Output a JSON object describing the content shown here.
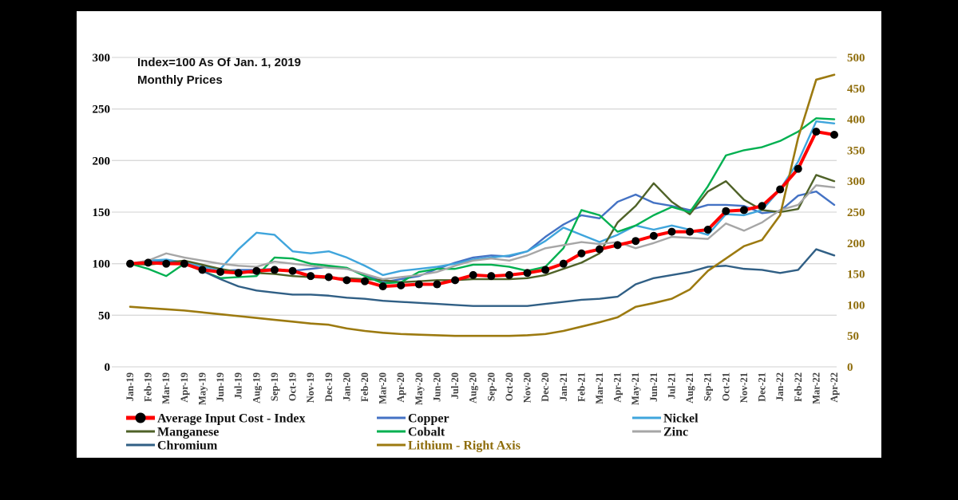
{
  "chart_data": {
    "type": "line",
    "title": "Index=100 As Of Jan. 1, 2019",
    "subtitle": "Monthly Prices",
    "x_categories": [
      "Jan-19",
      "Feb-19",
      "Mar-19",
      "Apr-19",
      "May-19",
      "Jun-19",
      "Jul-19",
      "Aug-19",
      "Sep-19",
      "Oct-19",
      "Nov-19",
      "Dec-19",
      "Jan-20",
      "Feb-20",
      "Mar-20",
      "Apr-20",
      "May-20",
      "Jun-20",
      "Jul-20",
      "Aug-20",
      "Sep-20",
      "Oct-20",
      "Nov-20",
      "Dec-20",
      "Jan-21",
      "Feb-21",
      "Mar-21",
      "Apr-21",
      "May-21",
      "Jun-21",
      "Jul-21",
      "Aug-21",
      "Sep-21",
      "Oct-21",
      "Nov-21",
      "Dec-21",
      "Jan-22",
      "Feb-22",
      "Mar-22",
      "Apr-22"
    ],
    "left_axis": {
      "min": 0,
      "max": 300,
      "step": 50,
      "ticks": [
        0,
        50,
        100,
        150,
        200,
        250,
        300
      ],
      "color": "#000000"
    },
    "right_axis": {
      "min": 0,
      "max": 500,
      "step": 50,
      "ticks": [
        0,
        50,
        100,
        150,
        200,
        250,
        300,
        350,
        400,
        450,
        500
      ],
      "color": "#8E6C0A"
    },
    "grid": true,
    "x_label_color": "#3F3F3F",
    "grid_color": "#D9D9D9",
    "legend_position": "bottom",
    "series": [
      {
        "name": "Average Input Cost - Index",
        "color": "#FF0000",
        "axis": "left",
        "marker": "black-dot",
        "marker_color": "#000000",
        "width": 4,
        "values": [
          100,
          101,
          100,
          100,
          94,
          92,
          91,
          93,
          94,
          93,
          88,
          87,
          84,
          83,
          78,
          79,
          80,
          80,
          84,
          89,
          88,
          89,
          91,
          94,
          100,
          110,
          114,
          118,
          122,
          127,
          131,
          131,
          133,
          151,
          152,
          156,
          172,
          192,
          228,
          225
        ]
      },
      {
        "name": "Copper",
        "color": "#4472C4",
        "axis": "left",
        "width": 2.4,
        "values": [
          100,
          102,
          103,
          102,
          95,
          93,
          94,
          94,
          95,
          93,
          95,
          97,
          95,
          90,
          82,
          85,
          88,
          95,
          101,
          106,
          108,
          107,
          112,
          126,
          138,
          147,
          144,
          160,
          167,
          159,
          156,
          152,
          157,
          157,
          156,
          149,
          151,
          166,
          170,
          157
        ]
      },
      {
        "name": "Nickel",
        "color": "#3FA5DC",
        "axis": "left",
        "width": 2.4,
        "values": [
          100,
          103,
          104,
          101,
          97,
          95,
          114,
          130,
          128,
          112,
          110,
          112,
          106,
          98,
          89,
          93,
          95,
          97,
          100,
          104,
          106,
          108,
          112,
          122,
          135,
          128,
          121,
          128,
          137,
          133,
          137,
          133,
          128,
          148,
          147,
          152,
          172,
          199,
          238,
          236
        ]
      },
      {
        "name": "Manganese",
        "color": "#4F6228",
        "axis": "left",
        "width": 2.4,
        "values": [
          100,
          99,
          101,
          103,
          99,
          95,
          92,
          91,
          90,
          88,
          87,
          86,
          86,
          85,
          84,
          82,
          83,
          84,
          84,
          85,
          85,
          85,
          86,
          89,
          95,
          101,
          110,
          140,
          156,
          178,
          160,
          148,
          170,
          180,
          162,
          152,
          150,
          153,
          186,
          180
        ]
      },
      {
        "name": "Cobalt",
        "color": "#00B050",
        "axis": "left",
        "width": 2.4,
        "values": [
          100,
          95,
          88,
          100,
          93,
          86,
          87,
          88,
          106,
          105,
          100,
          98,
          96,
          88,
          81,
          82,
          92,
          95,
          95,
          99,
          99,
          97,
          93,
          97,
          115,
          152,
          147,
          131,
          137,
          147,
          155,
          150,
          175,
          205,
          210,
          213,
          219,
          228,
          241,
          240
        ]
      },
      {
        "name": "Zinc",
        "color": "#A6A6A6",
        "axis": "left",
        "width": 2.4,
        "values": [
          100,
          103,
          110,
          106,
          103,
          100,
          98,
          97,
          102,
          100,
          98,
          96,
          95,
          90,
          85,
          87,
          89,
          92,
          98,
          103,
          105,
          103,
          108,
          115,
          118,
          121,
          119,
          121,
          115,
          120,
          126,
          125,
          124,
          139,
          132,
          140,
          152,
          157,
          176,
          174
        ]
      },
      {
        "name": "Chromium",
        "color": "#305F85",
        "axis": "left",
        "width": 2.4,
        "values": [
          100,
          101,
          102,
          100,
          93,
          85,
          78,
          74,
          72,
          70,
          70,
          69,
          67,
          66,
          64,
          63,
          62,
          61,
          60,
          59,
          59,
          59,
          59,
          61,
          63,
          65,
          66,
          68,
          80,
          86,
          89,
          92,
          97,
          98,
          95,
          94,
          91,
          94,
          114,
          108
        ]
      },
      {
        "name": "Lithium - Right Axis",
        "color": "#9C7A10",
        "axis": "right",
        "width": 2.6,
        "label_color": "#8E6C0A",
        "values": [
          97,
          95,
          93,
          91,
          88,
          85,
          82,
          79,
          76,
          73,
          70,
          68,
          62,
          58,
          55,
          53,
          52,
          51,
          50,
          50,
          50,
          50,
          51,
          53,
          58,
          65,
          72,
          80,
          97,
          103,
          110,
          125,
          155,
          175,
          195,
          205,
          245,
          370,
          464,
          472
        ]
      }
    ],
    "legend": {
      "columns": [
        [
          "Average Input Cost - Index",
          "Manganese",
          "Chromium"
        ],
        [
          "Copper",
          "Cobalt",
          "Lithium - Right Axis"
        ],
        [
          "Nickel",
          "Zinc"
        ]
      ]
    }
  }
}
